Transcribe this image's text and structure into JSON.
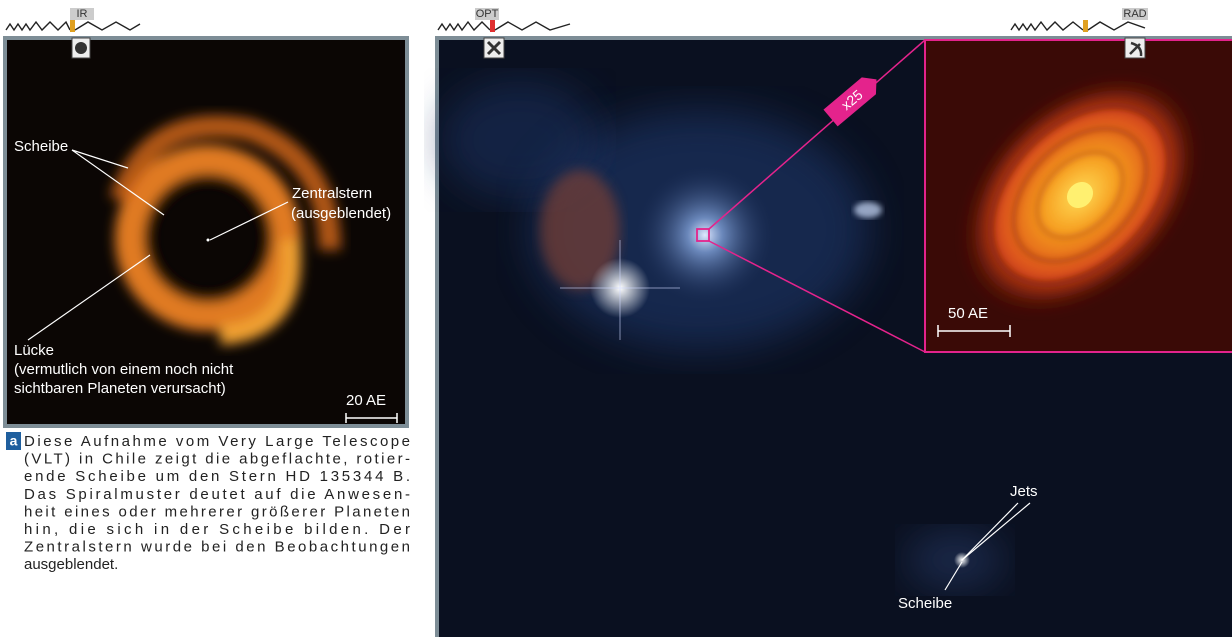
{
  "panels": [
    {
      "band": "IR",
      "labels": [
        "Scheibe",
        "Zentralstern",
        "(ausgeblendet)",
        "Lücke",
        "(vermutlich von einem noch nicht",
        "sichtbaren Planeten verursacht)"
      ],
      "scale_bar": "20 AE"
    },
    {
      "band": "OPT",
      "zoom": "x25",
      "labels": [
        "Jets",
        "Scheibe"
      ]
    },
    {
      "band": "RAD",
      "scale_bar": "50 AE"
    }
  ],
  "caption": {
    "label": "a",
    "lines": [
      "Diese Aufnahme vom Very Large Telescope",
      "(VLT) in Chile zeigt die abgeflachte, rotier-",
      "ende Scheibe um den Stern HD 135344 B.",
      "Das Spiralmuster deutet auf die Anwesen-",
      "heit eines oder mehrerer größerer Planeten",
      "hin, die sich in der Scheibe bilden. Der",
      "Zentralstern wurde bei den Beobachtungen",
      "ausgeblendet."
    ]
  }
}
